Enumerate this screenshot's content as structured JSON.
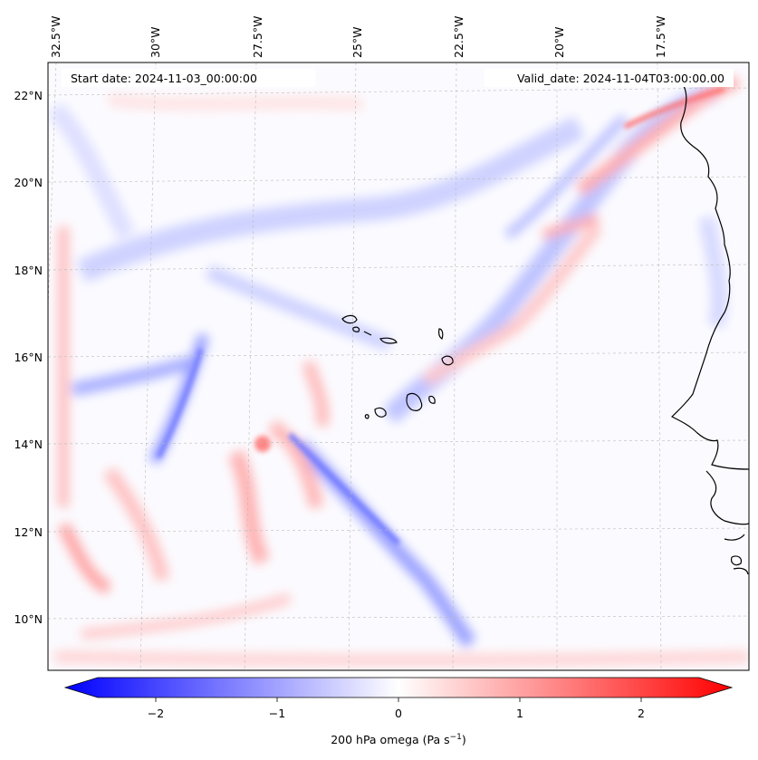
{
  "map": {
    "start_date": "Start date: 2024-11-03_00:00:00",
    "valid_date": "Valid_date: 2024-11-04T03:00:00.00",
    "lon_labels": [
      "32.5°W",
      "30°W",
      "27.5°W",
      "25°W",
      "22.5°W",
      "20°W",
      "17.5°W"
    ],
    "lat_labels": [
      "22°N",
      "20°N",
      "18°N",
      "16°N",
      "14°N",
      "12°N",
      "10°N"
    ],
    "colormap": "bwr",
    "colors": {
      "negative": "#0000ff",
      "zero": "#ffffff",
      "positive": "#ff0000",
      "coast": "#000000",
      "grid": "#bbbbbb"
    }
  },
  "colorbar": {
    "ticks": [
      "−2",
      "−1",
      "0",
      "1",
      "2"
    ],
    "label": "200 hPa omega (Pa s",
    "label_sup": "−1",
    "label_end": ")",
    "range": [
      -2.75,
      2.75
    ]
  }
}
